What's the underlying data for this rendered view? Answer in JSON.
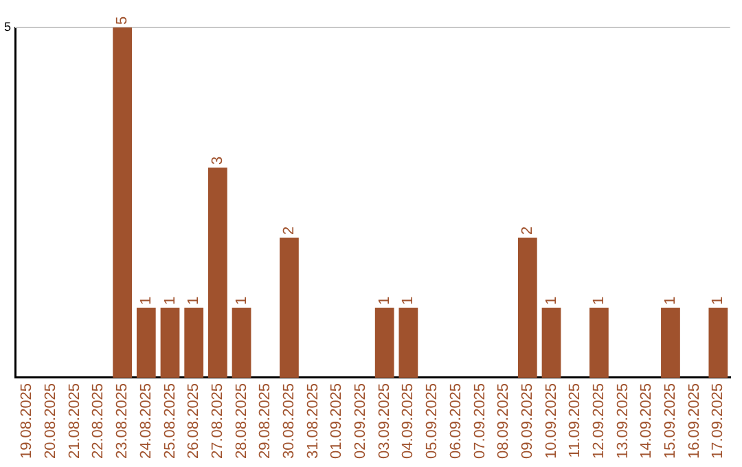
{
  "chart_data": {
    "type": "bar",
    "categories": [
      "19.08.2025",
      "20.08.2025",
      "21.08.2025",
      "22.08.2025",
      "23.08.2025",
      "24.08.2025",
      "25.08.2025",
      "26.08.2025",
      "27.08.2025",
      "28.08.2025",
      "29.08.2025",
      "30.08.2025",
      "31.08.2025",
      "01.09.2025",
      "02.09.2025",
      "03.09.2025",
      "04.09.2025",
      "05.09.2025",
      "06.09.2025",
      "07.09.2025",
      "08.09.2025",
      "09.09.2025",
      "10.09.2025",
      "11.09.2025",
      "12.09.2025",
      "13.09.2025",
      "14.09.2025",
      "15.09.2025",
      "16.09.2025",
      "17.09.2025"
    ],
    "values": [
      0,
      0,
      0,
      0,
      5,
      1,
      1,
      1,
      3,
      1,
      0,
      2,
      0,
      0,
      0,
      1,
      1,
      0,
      0,
      0,
      0,
      2,
      1,
      0,
      1,
      0,
      0,
      1,
      0,
      1
    ],
    "value_labels": [
      null,
      null,
      null,
      null,
      "5",
      "1",
      "1",
      "1",
      "3",
      "1",
      null,
      "2",
      null,
      null,
      null,
      "1",
      "1",
      null,
      null,
      null,
      null,
      "2",
      "1",
      null,
      "1",
      null,
      null,
      "1",
      null,
      "1"
    ],
    "color": "#a0522d",
    "ylim": [
      0,
      5
    ],
    "yticks": [
      5
    ],
    "ref_lines": [
      {
        "axis": "y",
        "value": 5,
        "color": "#c8c8c8"
      }
    ],
    "legend": false
  }
}
